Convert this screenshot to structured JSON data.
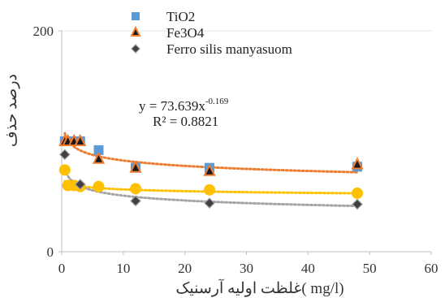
{
  "chart_data": {
    "type": "scatter",
    "xlabel": "غلظت اولیه آرسنیک( mg/l)",
    "ylabel": "درصد حذف",
    "xlim": [
      0,
      60
    ],
    "ylim": [
      0,
      200
    ],
    "x_ticks": [
      "0",
      "10",
      "20",
      "30",
      "40",
      "50",
      "60"
    ],
    "y_ticks": [
      "0",
      "200"
    ],
    "legend_position": "top",
    "series": [
      {
        "name": "TiO2",
        "marker": "square",
        "color": "#5b9bd5",
        "x": [
          0.5,
          1,
          2,
          3,
          6,
          12,
          24,
          48
        ],
        "y": [
          100,
          100,
          100,
          100,
          92,
          76,
          76,
          77
        ]
      },
      {
        "name": "Fe3O4",
        "marker": "triangle",
        "color": "#ed7d31",
        "x": [
          0.5,
          1,
          2,
          3,
          6,
          12,
          24,
          48
        ],
        "y": [
          100,
          100,
          100,
          100,
          84,
          76,
          73,
          79
        ]
      },
      {
        "name": "Ferro silis manyasuom",
        "marker": "diamond",
        "color": "#808080",
        "x": [
          0.5,
          3,
          12,
          24,
          48
        ],
        "y": [
          88,
          61,
          46,
          44,
          43
        ]
      },
      {
        "name": "",
        "marker": "circle",
        "color": "#ffc000",
        "x": [
          0.5,
          1,
          2,
          3,
          6,
          12,
          24,
          48
        ],
        "y": [
          74,
          60,
          60,
          59,
          59,
          57,
          56,
          53
        ]
      }
    ],
    "trendlines": [
      {
        "color": "#ed7d31",
        "a": 101,
        "b": -0.0875
      },
      {
        "color": "#ffc000",
        "a": 62,
        "b": -0.041
      },
      {
        "color": "#a5a5a5",
        "a": 68.5,
        "b": -0.13
      }
    ],
    "annotation": {
      "equation_base": "y = 73.639x",
      "equation_exponent": "-0.169",
      "r_squared": "R² = 0.8821"
    }
  }
}
